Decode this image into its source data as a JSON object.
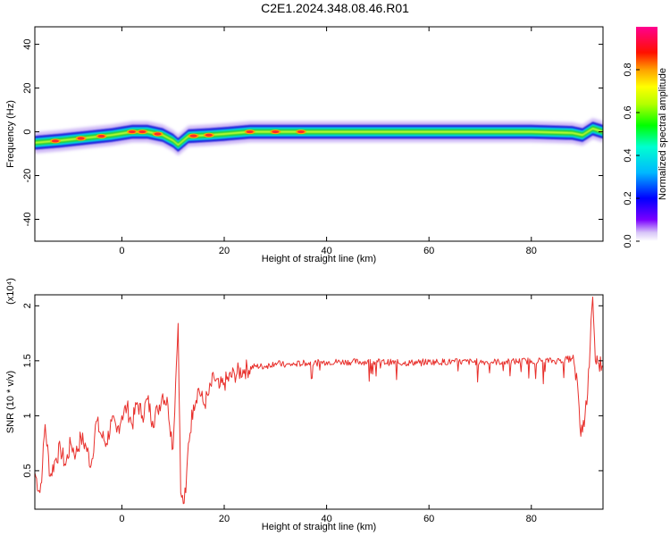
{
  "page_title": "C2E1.2024.348.08.46.R01",
  "colors": {
    "snr_line": "#e8302c",
    "spectrum_core": "#ff2a2a",
    "spectrum_mid": "#22cc33",
    "spectrum_outer": "#2222dd",
    "spectrum_fringe": "#c9b0f5"
  },
  "chart_data": [
    {
      "type": "heatmap",
      "title": "",
      "xlabel": "Height of straight line (km)",
      "ylabel": "Frequency (Hz)",
      "xlim": [
        -17,
        94
      ],
      "ylim": [
        -50,
        48
      ],
      "xticks": [
        0,
        20,
        40,
        60,
        80
      ],
      "yticks": [
        -40,
        -20,
        0,
        20,
        40
      ],
      "colorbar": {
        "label": "Normalized spectral amplitude",
        "range": [
          0,
          1
        ],
        "ticks": [
          0.0,
          0.2,
          0.4,
          0.6,
          0.8
        ],
        "colormap": "rainbow (violet-blue-cyan-green-yellow-orange-red-magenta)"
      },
      "ridge_center": [
        {
          "x": -17,
          "y": -5
        },
        {
          "x": -12,
          "y": -4
        },
        {
          "x": -6,
          "y": -2.5
        },
        {
          "x": -2,
          "y": -1.5
        },
        {
          "x": 2,
          "y": 0
        },
        {
          "x": 5,
          "y": 0
        },
        {
          "x": 8,
          "y": -1.5
        },
        {
          "x": 10,
          "y": -4
        },
        {
          "x": 11,
          "y": -6
        },
        {
          "x": 13,
          "y": -2
        },
        {
          "x": 17,
          "y": -1.5
        },
        {
          "x": 20,
          "y": -1
        },
        {
          "x": 25,
          "y": 0
        },
        {
          "x": 40,
          "y": 0
        },
        {
          "x": 60,
          "y": 0
        },
        {
          "x": 80,
          "y": 0
        },
        {
          "x": 88,
          "y": -0.5
        },
        {
          "x": 90,
          "y": -1.5
        },
        {
          "x": 92,
          "y": 1.5
        },
        {
          "x": 94,
          "y": 0
        }
      ],
      "ridge_halfwidth_hz": 3,
      "hot_spots_x": [
        -13,
        -8,
        -4,
        2,
        4,
        7,
        14,
        17,
        25,
        30,
        35
      ]
    },
    {
      "type": "line",
      "title": "",
      "xlabel": "Height of straight line (km)",
      "ylabel": "SNR (10 * v/v)",
      "y_scale_note": "(x10⁴)",
      "xlim": [
        -17,
        94
      ],
      "ylim": [
        0.15,
        2.1
      ],
      "xticks": [
        0,
        20,
        40,
        60,
        80
      ],
      "yticks": [
        0.5,
        1.0,
        1.5,
        2.0
      ],
      "series": [
        {
          "x": [
            -17,
            -16,
            -15.5,
            -15,
            -14,
            -13,
            -12,
            -11,
            -10,
            -9,
            -8,
            -7,
            -6,
            -5,
            -4,
            -3,
            -2,
            -1,
            0,
            1,
            2,
            3,
            4,
            5,
            6,
            7,
            8,
            9,
            10,
            10.5,
            11,
            11.5,
            12,
            12.5,
            13,
            14,
            15,
            16,
            17,
            18,
            19,
            20,
            22,
            24,
            26,
            28,
            30,
            32,
            34,
            36,
            38,
            40,
            45,
            50,
            55,
            60,
            65,
            70,
            75,
            80,
            85,
            88,
            89,
            89.5,
            90,
            91,
            91.5,
            92,
            92.5,
            93,
            94
          ],
          "y": [
            0.48,
            0.3,
            0.55,
            0.92,
            0.45,
            0.6,
            0.7,
            0.55,
            0.75,
            0.65,
            0.8,
            0.72,
            0.55,
            0.95,
            0.82,
            0.75,
            0.95,
            0.85,
            1.0,
            1.08,
            0.92,
            1.12,
            1.0,
            1.15,
            0.95,
            1.05,
            1.2,
            1.1,
            0.7,
            1.3,
            1.84,
            0.3,
            0.2,
            0.3,
            0.75,
            1.1,
            1.25,
            1.1,
            1.2,
            1.35,
            1.25,
            1.3,
            1.38,
            1.42,
            1.45,
            1.45,
            1.48,
            1.46,
            1.47,
            1.48,
            1.48,
            1.49,
            1.49,
            1.49,
            1.48,
            1.49,
            1.49,
            1.49,
            1.49,
            1.5,
            1.5,
            1.52,
            1.3,
            0.9,
            0.85,
            1.2,
            1.65,
            2.08,
            1.5,
            1.48,
            1.45
          ]
        }
      ]
    }
  ]
}
